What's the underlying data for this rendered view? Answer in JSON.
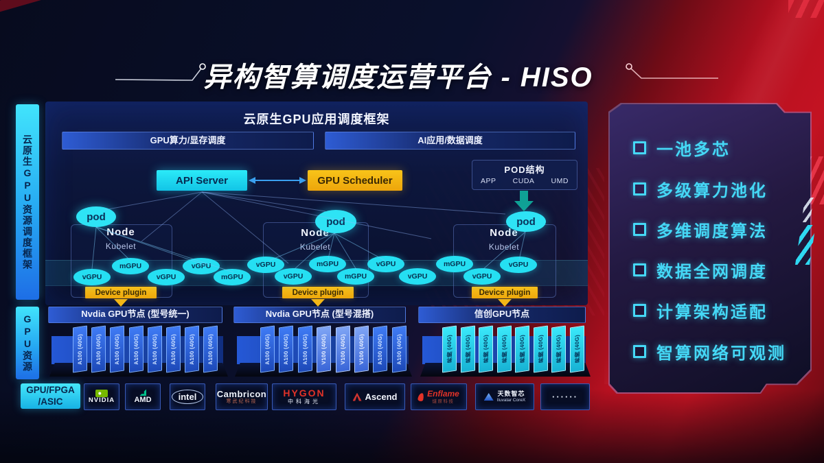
{
  "title": "异构智算调度运营平台 - HISO",
  "left_rails": {
    "scheduling_framework": "云原生GPU资源调度框架",
    "gpu_resources": "GPU资源"
  },
  "app_framework": {
    "title": "云原生GPU应用调度框架",
    "lanes": [
      "GPU算力/显存调度",
      "AI应用/数据调度"
    ]
  },
  "control_plane": {
    "api_server": "API Server",
    "gpu_scheduler": "GPU Scheduler"
  },
  "pod_structure": {
    "title": "POD结构",
    "layers": [
      "APP",
      "CUDA",
      "UMD"
    ]
  },
  "nodes": [
    {
      "pod": "pod",
      "title": "Node",
      "agent": "Kubelet",
      "device_plugin": "Device plugin"
    },
    {
      "pod": "pod",
      "title": "Node",
      "agent": "Kubelet",
      "device_plugin": "Device plugin"
    },
    {
      "pod": "pod",
      "title": "Node",
      "agent": "Kubelet",
      "device_plugin": "Device plugin"
    }
  ],
  "gpu_instances": [
    "vGPU",
    "mGPU",
    "vGPU",
    "vGPU",
    "mGPU",
    "vGPU",
    "vGPU",
    "mGPU",
    "mGPU",
    "vGPU",
    "vGPU",
    "mGPU",
    "vGPU",
    "vGPU"
  ],
  "gpu_pools": [
    {
      "label": "Nvdia GPU节点 (型号统一)",
      "style": "blue",
      "cards": [
        "A100 (40G)",
        "A100 (40G)",
        "A100 (40G)",
        "A100 (40G)",
        "A100 (40G)",
        "A100 (40G)",
        "A100 (40G)",
        "A100 (40G)"
      ]
    },
    {
      "label": "Nvdia GPU节点 (型号混搭)",
      "style": "blue",
      "cards": [
        "A100 (40G)",
        "A100 (40G)",
        "A100 (40G)",
        "V100 (40G)",
        "V100 (40G)",
        "V100 (40G)",
        "A100 (40G)",
        "A100 (40G)"
      ]
    },
    {
      "label": "信创GPU节点",
      "style": "cyan",
      "cards": [
        "昇腾 (40G)",
        "昇腾 (40G)",
        "昇腾 (40G)",
        "昇腾 (40G)",
        "昇腾 (40G)",
        "昇腾 (40G)",
        "昇腾 (40G)",
        "昇腾 (40G)"
      ]
    }
  ],
  "hardware_bar": {
    "category_line1": "GPU/FPGA",
    "category_line2": "/ASIC",
    "vendors": [
      {
        "id": "nvidia",
        "name": "NVIDIA"
      },
      {
        "id": "amd",
        "name": "AMD"
      },
      {
        "id": "intel",
        "name": "intel"
      },
      {
        "id": "cambricon",
        "name": "Cambricon",
        "sub": "寒武纪科技"
      },
      {
        "id": "hygon",
        "name": "HYGON",
        "sub": "中科海光"
      },
      {
        "id": "ascend",
        "name": "Ascend"
      },
      {
        "id": "enflame",
        "name": "Enflame",
        "sub": "燧原科技"
      },
      {
        "id": "iluvatar",
        "name": "天数智芯",
        "sub": "Iluvatar CoreX"
      },
      {
        "id": "more",
        "name": "······"
      }
    ]
  },
  "features": [
    "一池多芯",
    "多级算力池化",
    "多维调度算法",
    "数据全网调度",
    "计算架构适配",
    "智算网络可观测"
  ],
  "colors": {
    "accent_cyan": "#2ee3f5",
    "accent_yellow": "#f5b514",
    "accent_red": "#c31322",
    "card_blue": "#2f6cf0"
  }
}
